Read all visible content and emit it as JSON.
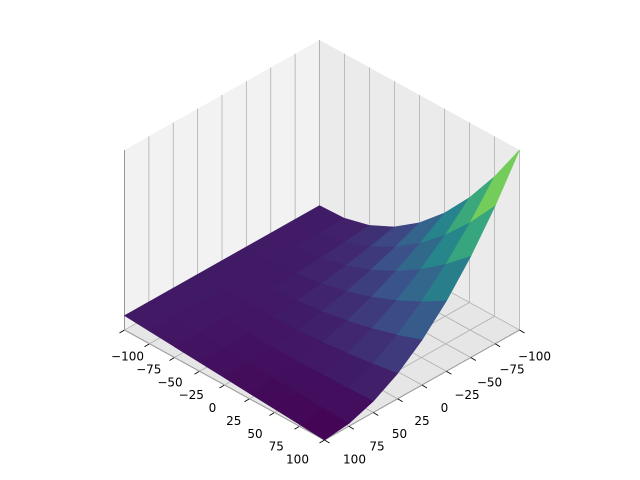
{
  "chart_data": {
    "type": "surface3d",
    "colormap": "viridis",
    "x": [
      -100,
      -75,
      -50,
      -25,
      0,
      25,
      50,
      75,
      100
    ],
    "y": [
      -100,
      -75,
      -50,
      -25,
      0,
      25,
      50,
      75,
      100
    ],
    "z": [
      [
        8,
        8,
        8,
        8,
        8,
        8,
        8,
        8,
        8
      ],
      [
        8.56,
        8.2,
        7.88,
        7.61,
        7.39,
        7.22,
        7.1,
        7.02,
        7
      ],
      [
        12.25,
        10.79,
        9.52,
        8.44,
        7.56,
        6.88,
        6.39,
        6.1,
        6
      ],
      [
        19.06,
        15.77,
        12.91,
        10.49,
        8.52,
        6.98,
        5.88,
        5.22,
        5
      ],
      [
        29,
        23.14,
        18.06,
        13.77,
        10.25,
        7.52,
        5.56,
        4.39,
        4
      ],
      [
        42.06,
        32.91,
        24.97,
        18.26,
        12.77,
        8.49,
        5.44,
        3.61,
        3
      ],
      [
        58.25,
        45.07,
        33.64,
        23.97,
        16.06,
        9.91,
        5.52,
        2.88,
        2
      ],
      [
        77.56,
        59.62,
        44.07,
        30.91,
        20.14,
        11.77,
        5.79,
        2.2,
        1
      ],
      [
        100,
        76.56,
        56.25,
        39.06,
        25,
        14.06,
        6.25,
        1.56,
        0
      ]
    ],
    "xlim": [
      -100,
      100
    ],
    "ylim": [
      -100,
      100
    ],
    "zlim": [
      0,
      100
    ],
    "xticks": [
      {
        "value": -100,
        "label": "−100"
      },
      {
        "value": -75,
        "label": "−75"
      },
      {
        "value": -50,
        "label": "−50"
      },
      {
        "value": -25,
        "label": "−25"
      },
      0,
      25,
      50,
      75,
      100
    ],
    "yticks": [
      {
        "value": -100,
        "label": "−100"
      },
      {
        "value": -75,
        "label": "−75"
      },
      {
        "value": -50,
        "label": "−50"
      },
      {
        "value": -25,
        "label": "−25"
      },
      0,
      25,
      50,
      75,
      100
    ],
    "grid": true
  }
}
